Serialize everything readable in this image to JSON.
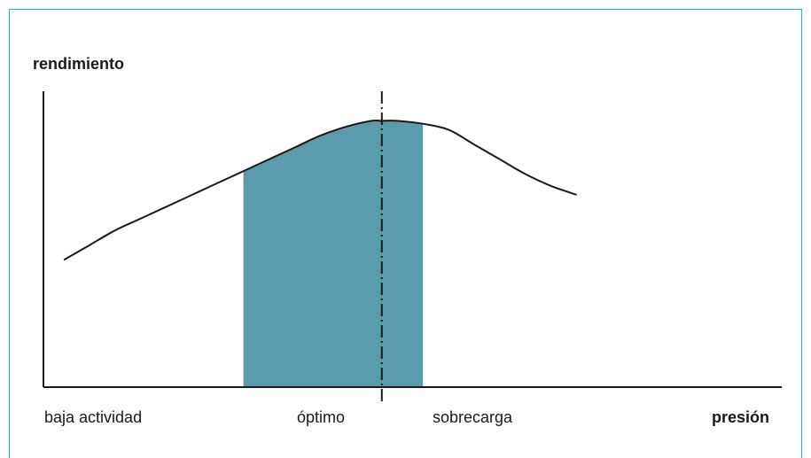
{
  "chart_data": {
    "type": "line",
    "ylabel": "rendimiento",
    "xlabel": "presión",
    "x_zone_labels": [
      "baja actividad",
      "óptimo",
      "sobrecarga"
    ],
    "curve": {
      "x": [
        0,
        0.25,
        0.5,
        0.75,
        1.0,
        1.25,
        1.5,
        1.75,
        2.0,
        2.25,
        2.5,
        2.75,
        3.0,
        3.1,
        3.25,
        3.5,
        3.75,
        4.0,
        4.25,
        4.5,
        4.75,
        5.0
      ],
      "y": [
        0.43,
        0.48,
        0.53,
        0.57,
        0.61,
        0.65,
        0.69,
        0.73,
        0.77,
        0.81,
        0.85,
        0.88,
        0.9,
        0.9,
        0.9,
        0.89,
        0.87,
        0.82,
        0.77,
        0.72,
        0.68,
        0.65
      ]
    },
    "optimal_band": {
      "x_start": 1.75,
      "x_end": 3.5
    },
    "optimal_x": 3.1,
    "xlim": [
      -0.2,
      7.0
    ],
    "ylim": [
      0,
      1.0
    ],
    "band_color": "#5a9bae",
    "line_color": "#1a1a1a"
  }
}
